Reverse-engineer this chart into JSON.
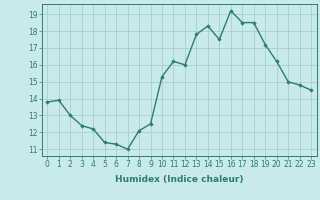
{
  "x": [
    0,
    1,
    2,
    3,
    4,
    5,
    6,
    7,
    8,
    9,
    10,
    11,
    12,
    13,
    14,
    15,
    16,
    17,
    18,
    19,
    20,
    21,
    22,
    23
  ],
  "y": [
    13.8,
    13.9,
    13.0,
    12.4,
    12.2,
    11.4,
    11.3,
    11.0,
    12.1,
    12.5,
    15.3,
    16.2,
    16.0,
    17.8,
    18.3,
    17.5,
    19.2,
    18.5,
    18.5,
    17.2,
    16.2,
    15.0,
    14.8,
    14.5
  ],
  "line_color": "#2e7d6e",
  "marker": "D",
  "marker_size": 1.8,
  "line_width": 1.0,
  "bg_color": "#c8eaea",
  "grid_color": "#aacece",
  "xlabel": "Humidex (Indice chaleur)",
  "xlabel_fontsize": 6.5,
  "tick_fontsize": 5.5,
  "ylim": [
    10.6,
    19.6
  ],
  "xlim": [
    -0.5,
    23.5
  ],
  "yticks": [
    11,
    12,
    13,
    14,
    15,
    16,
    17,
    18,
    19
  ],
  "xticks": [
    0,
    1,
    2,
    3,
    4,
    5,
    6,
    7,
    8,
    9,
    10,
    11,
    12,
    13,
    14,
    15,
    16,
    17,
    18,
    19,
    20,
    21,
    22,
    23
  ]
}
